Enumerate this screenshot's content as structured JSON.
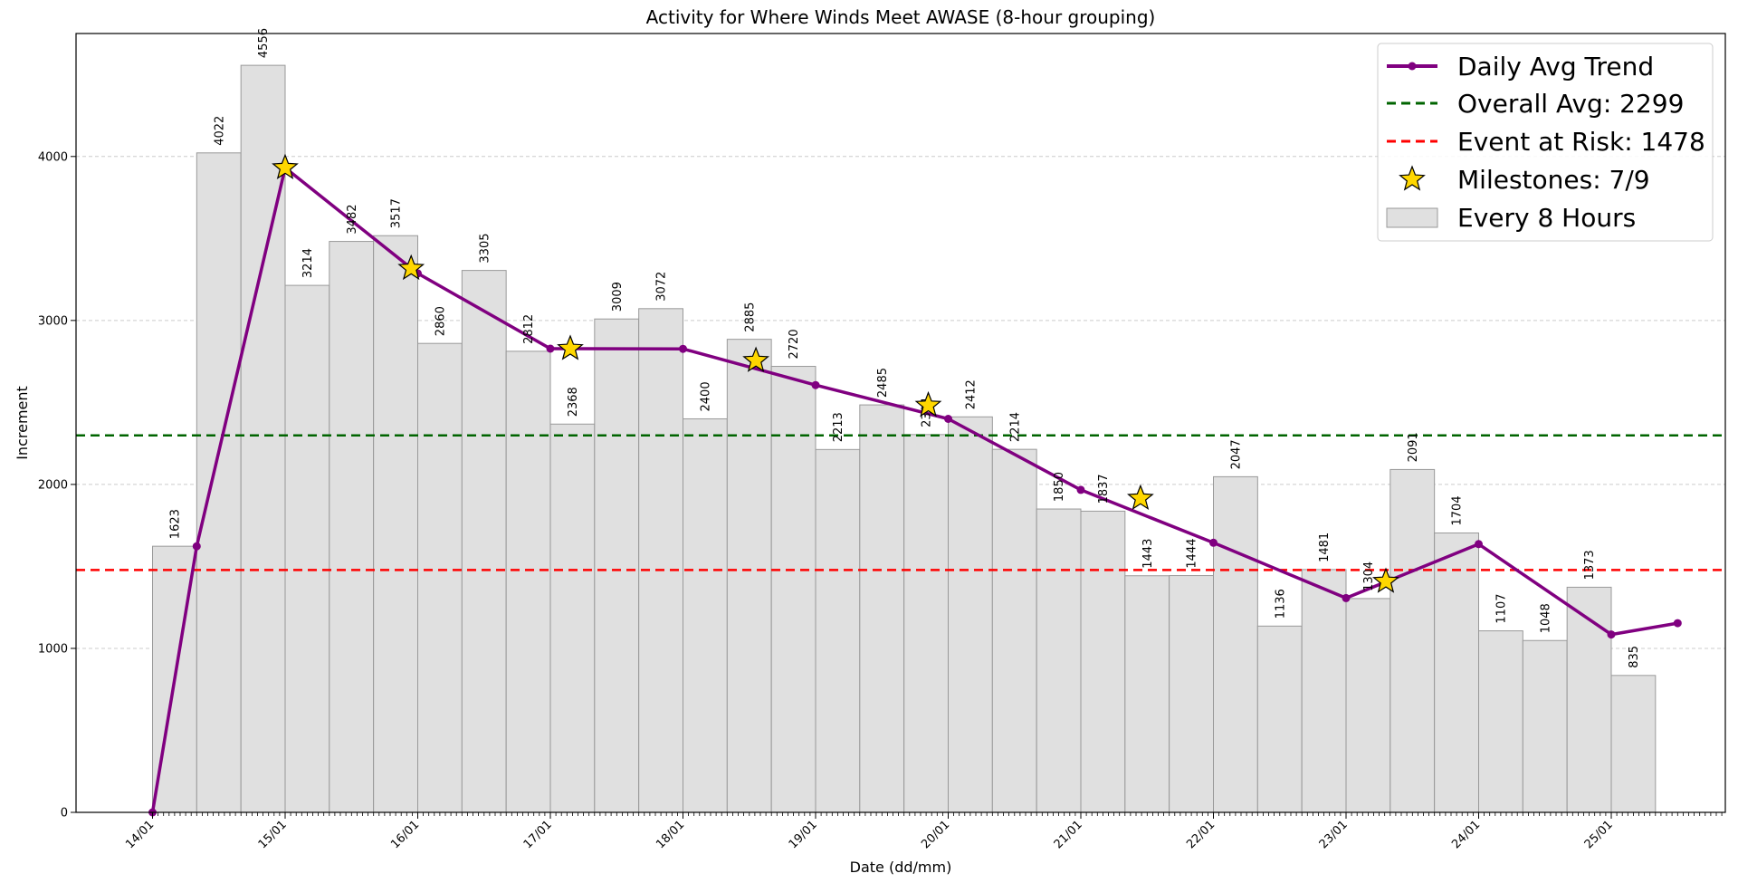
{
  "chart_data": {
    "type": "bar",
    "title": "Activity for Where Winds Meet AWASE (8-hour grouping)",
    "xlabel": "Date (dd/mm)",
    "ylabel": "Increment",
    "ylim": [
      0,
      4750
    ],
    "yticks": [
      0,
      1000,
      2000,
      3000,
      4000
    ],
    "x_tick_labels": [
      "14/01",
      "15/01",
      "16/01",
      "17/01",
      "18/01",
      "19/01",
      "20/01",
      "21/01",
      "22/01",
      "23/01",
      "24/01",
      "25/01"
    ],
    "grid": "horizontal dashed",
    "legend_position": "top-right",
    "bars": {
      "name": "Every 8 Hours",
      "color": "#e0e0e0",
      "edge_color": "#999999",
      "values": [
        1623,
        4022,
        4556,
        3214,
        3482,
        3517,
        2860,
        3305,
        2812,
        2368,
        3009,
        3072,
        2400,
        2885,
        2720,
        2213,
        2485,
        2304,
        2412,
        2214,
        1850,
        1837,
        1443,
        1444,
        2047,
        1136,
        1481,
        1304,
        2091,
        1704,
        1107,
        1048,
        1373,
        835
      ]
    },
    "trend": {
      "name": "Daily Avg Trend",
      "color": "#800080",
      "x_days": [
        0,
        0.333,
        1,
        2,
        3,
        4,
        5,
        6,
        7,
        8,
        9,
        10,
        11,
        11.5
      ],
      "values": [
        0,
        1623,
        3931,
        3287,
        2828,
        2827,
        2606,
        2400,
        1967,
        1644,
        1307,
        1636,
        1085,
        1154
      ]
    },
    "milestones": {
      "label": "Milestones: 7/9",
      "color": "#ffd700",
      "x_days": [
        1,
        1.95,
        3.15,
        4.55,
        5.85,
        7.45,
        9.3
      ],
      "values": [
        3931,
        3317,
        2828,
        2755,
        2482,
        1915,
        1408
      ]
    },
    "reference_lines": [
      {
        "label": "Overall Avg: 2299",
        "value": 2299,
        "color": "#006400"
      },
      {
        "label": "Event at Risk: 1478",
        "value": 1478,
        "color": "#ff0000"
      }
    ]
  }
}
